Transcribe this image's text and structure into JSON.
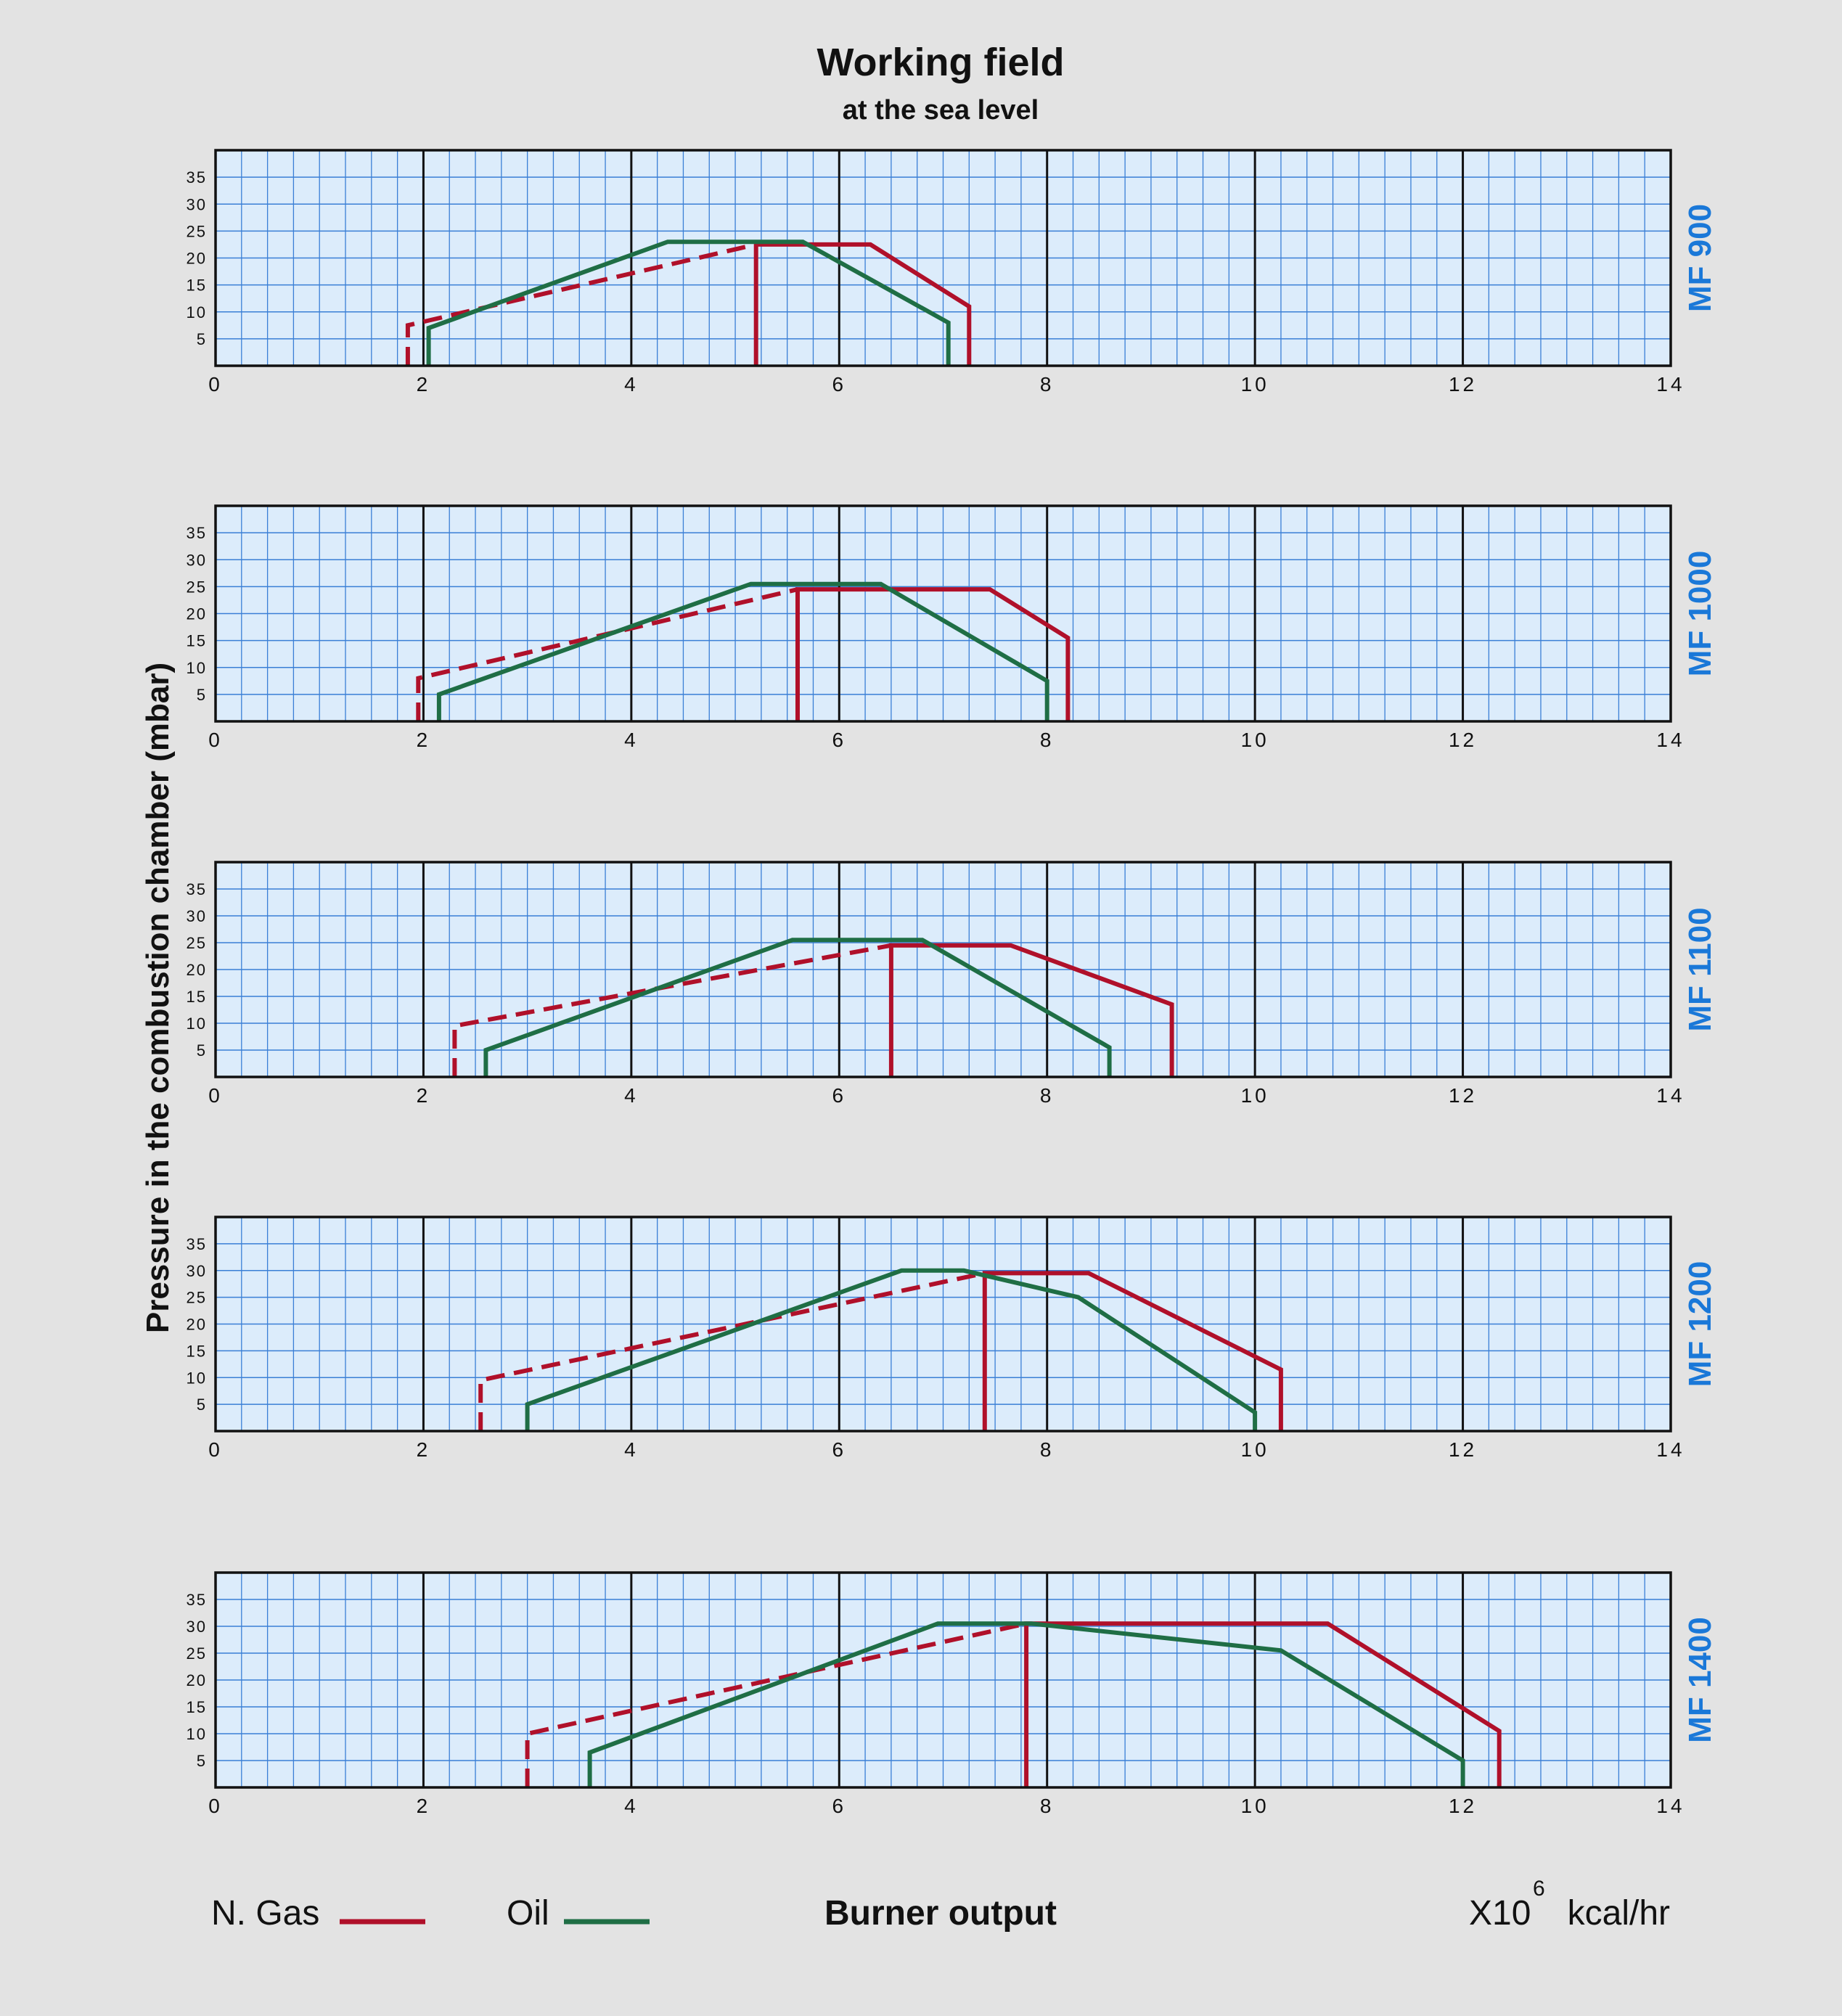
{
  "header": {
    "title": "Working field",
    "subtitle": "at the sea level"
  },
  "y_axis_label": "Pressure in the combustion chamber (mbar)",
  "legend": {
    "gas_label": "N. Gas",
    "gas_color": "#b0102a",
    "oil_label": "Oil",
    "oil_color": "#1f6e45"
  },
  "x_axis_label": "Burner output",
  "units": {
    "prefix": "X10",
    "exponent": "6",
    "suffix": "kcal/hr"
  },
  "colors": {
    "background": "#e3e3e3",
    "plot_background": "#dcecfb",
    "grid_minor": "#3a7fd6",
    "grid_major": "#111111",
    "model_label": "#1a78d8"
  },
  "chart_data": [
    {
      "type": "line",
      "model": "MF 900",
      "xlim": [
        0,
        14
      ],
      "ylim": [
        0,
        40
      ],
      "x_ticks": [
        "0",
        "2",
        "4",
        "6",
        "8",
        "10",
        "12",
        "14"
      ],
      "y_ticks": [
        "5",
        "10",
        "15",
        "20",
        "25",
        "30",
        "35"
      ],
      "series": [
        {
          "name": "N. Gas",
          "style": "dashed",
          "points": [
            [
              1.85,
              0
            ],
            [
              1.85,
              7.5
            ],
            [
              5.2,
              22.5
            ]
          ]
        },
        {
          "name": "N. Gas",
          "style": "solid",
          "points": [
            [
              5.2,
              0
            ],
            [
              5.2,
              22.5
            ],
            [
              6.3,
              22.5
            ],
            [
              7.25,
              11
            ],
            [
              7.25,
              0
            ]
          ]
        },
        {
          "name": "Oil",
          "style": "solid",
          "points": [
            [
              2.05,
              0
            ],
            [
              2.05,
              7
            ],
            [
              4.35,
              23
            ],
            [
              5.65,
              23
            ],
            [
              7.05,
              8
            ],
            [
              7.05,
              0
            ]
          ]
        }
      ]
    },
    {
      "type": "line",
      "model": "MF 1000",
      "xlim": [
        0,
        14
      ],
      "ylim": [
        0,
        40
      ],
      "x_ticks": [
        "0",
        "2",
        "4",
        "6",
        "8",
        "10",
        "12",
        "14"
      ],
      "y_ticks": [
        "5",
        "10",
        "15",
        "20",
        "25",
        "30",
        "35"
      ],
      "series": [
        {
          "name": "N. Gas",
          "style": "dashed",
          "points": [
            [
              1.95,
              0
            ],
            [
              1.95,
              8
            ],
            [
              5.6,
              24.5
            ]
          ]
        },
        {
          "name": "N. Gas",
          "style": "solid",
          "points": [
            [
              5.6,
              0
            ],
            [
              5.6,
              24.5
            ],
            [
              7.45,
              24.5
            ],
            [
              8.2,
              15.5
            ],
            [
              8.2,
              0
            ]
          ]
        },
        {
          "name": "Oil",
          "style": "solid",
          "points": [
            [
              2.15,
              0
            ],
            [
              2.15,
              5
            ],
            [
              5.15,
              25.5
            ],
            [
              6.4,
              25.5
            ],
            [
              8.0,
              7.5
            ],
            [
              8.0,
              0
            ]
          ]
        }
      ]
    },
    {
      "type": "line",
      "model": "MF 1100",
      "xlim": [
        0,
        14
      ],
      "ylim": [
        0,
        40
      ],
      "x_ticks": [
        "0",
        "2",
        "4",
        "6",
        "8",
        "10",
        "12",
        "14"
      ],
      "y_ticks": [
        "5",
        "10",
        "15",
        "20",
        "25",
        "30",
        "35"
      ],
      "series": [
        {
          "name": "N. Gas",
          "style": "dashed",
          "points": [
            [
              2.3,
              0
            ],
            [
              2.3,
              9.5
            ],
            [
              6.5,
              24.5
            ]
          ]
        },
        {
          "name": "N. Gas",
          "style": "solid",
          "points": [
            [
              6.5,
              0
            ],
            [
              6.5,
              24.5
            ],
            [
              7.65,
              24.5
            ],
            [
              9.2,
              13.5
            ],
            [
              9.2,
              0
            ]
          ]
        },
        {
          "name": "Oil",
          "style": "solid",
          "points": [
            [
              2.6,
              0
            ],
            [
              2.6,
              5
            ],
            [
              5.55,
              25.5
            ],
            [
              6.8,
              25.5
            ],
            [
              8.6,
              5.5
            ],
            [
              8.6,
              0
            ]
          ]
        }
      ]
    },
    {
      "type": "line",
      "model": "MF 1200",
      "xlim": [
        0,
        14
      ],
      "ylim": [
        0,
        40
      ],
      "x_ticks": [
        "0",
        "2",
        "4",
        "6",
        "8",
        "10",
        "12",
        "14"
      ],
      "y_ticks": [
        "5",
        "10",
        "15",
        "20",
        "25",
        "30",
        "35"
      ],
      "series": [
        {
          "name": "N. Gas",
          "style": "dashed",
          "points": [
            [
              2.55,
              0
            ],
            [
              2.55,
              9.5
            ],
            [
              7.4,
              29.5
            ]
          ]
        },
        {
          "name": "N. Gas",
          "style": "solid",
          "points": [
            [
              7.4,
              0
            ],
            [
              7.4,
              29.5
            ],
            [
              8.4,
              29.5
            ],
            [
              10.25,
              11.5
            ],
            [
              10.25,
              0
            ]
          ]
        },
        {
          "name": "Oil",
          "style": "solid",
          "points": [
            [
              3.0,
              0
            ],
            [
              3.0,
              5
            ],
            [
              6.6,
              30
            ],
            [
              7.2,
              30
            ],
            [
              8.3,
              25
            ],
            [
              10.0,
              3.5
            ],
            [
              10.0,
              0
            ]
          ]
        }
      ]
    },
    {
      "type": "line",
      "model": "MF 1400",
      "xlim": [
        0,
        14
      ],
      "ylim": [
        0,
        40
      ],
      "x_ticks": [
        "0",
        "2",
        "4",
        "6",
        "8",
        "10",
        "12",
        "14"
      ],
      "y_ticks": [
        "5",
        "10",
        "15",
        "20",
        "25",
        "30",
        "35"
      ],
      "series": [
        {
          "name": "N. Gas",
          "style": "dashed",
          "points": [
            [
              3.0,
              0
            ],
            [
              3.0,
              10
            ],
            [
              7.8,
              30.5
            ]
          ]
        },
        {
          "name": "N. Gas",
          "style": "solid",
          "points": [
            [
              7.8,
              0
            ],
            [
              7.8,
              30.5
            ],
            [
              10.7,
              30.5
            ],
            [
              12.35,
              10.5
            ],
            [
              12.35,
              0
            ]
          ]
        },
        {
          "name": "Oil",
          "style": "solid",
          "points": [
            [
              3.6,
              0
            ],
            [
              3.6,
              6.5
            ],
            [
              6.95,
              30.5
            ],
            [
              7.85,
              30.5
            ],
            [
              10.25,
              25.5
            ],
            [
              12.0,
              5
            ],
            [
              12.0,
              0
            ]
          ]
        }
      ]
    }
  ]
}
